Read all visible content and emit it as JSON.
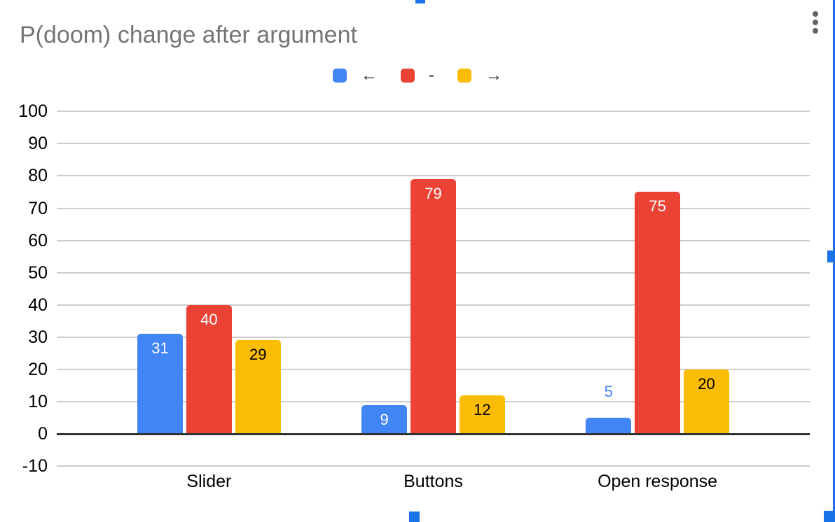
{
  "title": "P(doom) change after argument",
  "legend": {
    "items": [
      {
        "name": "left-arrow",
        "label": "←",
        "color": "#4285f4"
      },
      {
        "name": "minus",
        "label": "-",
        "color": "#ea4335"
      },
      {
        "name": "right-arrow",
        "label": "→",
        "color": "#fbbc04"
      }
    ]
  },
  "chart_data": {
    "type": "bar",
    "title": "P(doom) change after argument",
    "categories": [
      "Slider",
      "Buttons",
      "Open response"
    ],
    "series": [
      {
        "name": "←",
        "color": "#4285f4",
        "label_color_inside": "#ffffff",
        "values": [
          31,
          9,
          5
        ]
      },
      {
        "name": "-",
        "color": "#ea4335",
        "label_color_inside": "#ffffff",
        "values": [
          40,
          79,
          75
        ]
      },
      {
        "name": "→",
        "color": "#fbbc04",
        "label_color_inside": "#000000",
        "values": [
          29,
          12,
          20
        ]
      }
    ],
    "ylim": [
      -10,
      100
    ],
    "yticks": [
      100,
      90,
      80,
      70,
      60,
      50,
      40,
      30,
      20,
      10,
      0,
      -10
    ],
    "grid": true,
    "legend_position": "top",
    "value_labels": true,
    "gridline_color": "#cccccc",
    "axis_color": "#333333"
  },
  "selection": {
    "color": "#1a73e8"
  },
  "menu": {
    "more_options_icon": "kebab-vertical"
  }
}
